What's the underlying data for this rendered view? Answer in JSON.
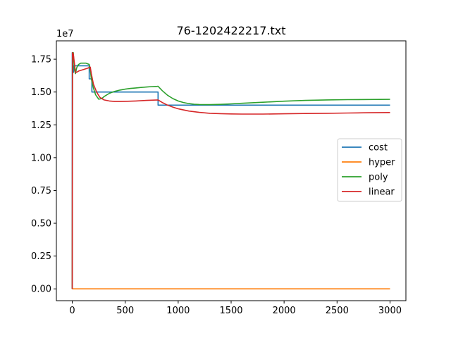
{
  "chart_data": {
    "type": "line",
    "title": "76-1202422217.txt",
    "xlabel": "",
    "ylabel": "",
    "y_multiplier": "1e7",
    "xlim": [
      -150,
      3150
    ],
    "ylim": [
      -0.09,
      1.89
    ],
    "x_ticks": [
      0,
      500,
      1000,
      1500,
      2000,
      2500,
      3000
    ],
    "x_tick_labels": [
      "0",
      "500",
      "1000",
      "1500",
      "2000",
      "2500",
      "3000"
    ],
    "y_ticks": [
      0.0,
      0.25,
      0.5,
      0.75,
      1.0,
      1.25,
      1.5,
      1.75
    ],
    "y_tick_labels": [
      "0.00",
      "0.25",
      "0.50",
      "0.75",
      "1.00",
      "1.25",
      "1.50",
      "1.75"
    ],
    "grid": false,
    "legend_position": "center-right",
    "series": [
      {
        "name": "cost",
        "color": "#1f77b4",
        "x": [
          0,
          0,
          5,
          5,
          12,
          12,
          160,
          160,
          185,
          185,
          810,
          810,
          3000
        ],
        "y": [
          0.0,
          1.8,
          1.8,
          1.65,
          1.65,
          1.7,
          1.7,
          1.6,
          1.6,
          1.5,
          1.5,
          1.4,
          1.4
        ]
      },
      {
        "name": "hyper",
        "color": "#ff7f0e",
        "x": [
          0,
          3000
        ],
        "y": [
          0.0,
          0.0
        ]
      },
      {
        "name": "poly",
        "color": "#2ca02c",
        "x": [
          0,
          3,
          10,
          20,
          30,
          40,
          50,
          60,
          80,
          100,
          130,
          160,
          170,
          180,
          200,
          220,
          250,
          280,
          300,
          350,
          400,
          450,
          500,
          550,
          600,
          650,
          700,
          750,
          800,
          810,
          850,
          900,
          950,
          1000,
          1050,
          1100,
          1150,
          1200,
          1300,
          1400,
          1500,
          1600,
          1800,
          2000,
          2200,
          2400,
          2600,
          2800,
          3000
        ],
        "y": [
          0.0,
          1.8,
          1.8,
          1.67,
          1.64,
          1.68,
          1.7,
          1.71,
          1.72,
          1.72,
          1.72,
          1.71,
          1.67,
          1.6,
          1.53,
          1.48,
          1.445,
          1.45,
          1.465,
          1.49,
          1.505,
          1.515,
          1.522,
          1.527,
          1.531,
          1.535,
          1.538,
          1.541,
          1.543,
          1.544,
          1.51,
          1.475,
          1.45,
          1.432,
          1.42,
          1.412,
          1.407,
          1.405,
          1.404,
          1.406,
          1.41,
          1.414,
          1.422,
          1.43,
          1.436,
          1.44,
          1.442,
          1.443,
          1.444
        ]
      },
      {
        "name": "linear",
        "color": "#d62728",
        "x": [
          0,
          2,
          10,
          20,
          30,
          40,
          60,
          100,
          140,
          170,
          180,
          200,
          230,
          260,
          300,
          350,
          400,
          450,
          500,
          600,
          700,
          810,
          850,
          900,
          950,
          1000,
          1100,
          1200,
          1300,
          1400,
          1500,
          1600,
          1800,
          2000,
          2200,
          2400,
          2600,
          2800,
          3000
        ],
        "y": [
          0.0,
          1.8,
          1.79,
          1.72,
          1.65,
          1.65,
          1.66,
          1.67,
          1.68,
          1.69,
          1.64,
          1.56,
          1.5,
          1.46,
          1.44,
          1.432,
          1.428,
          1.428,
          1.429,
          1.432,
          1.436,
          1.44,
          1.42,
          1.4,
          1.385,
          1.372,
          1.355,
          1.345,
          1.338,
          1.335,
          1.333,
          1.332,
          1.332,
          1.334,
          1.336,
          1.338,
          1.34,
          1.342,
          1.344
        ]
      }
    ]
  }
}
